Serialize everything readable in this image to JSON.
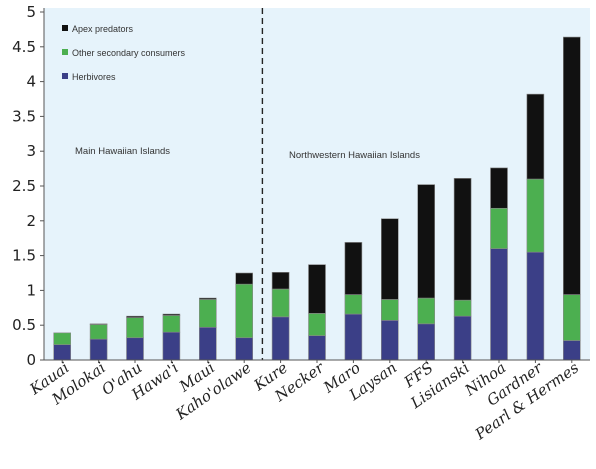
{
  "chart_data": {
    "type": "bar",
    "stacked": true,
    "categories": [
      "Kauai",
      "Molokai",
      "O'ahu",
      "Hawa'i",
      "Maui",
      "Kaho'olawe",
      "Kure",
      "Necker",
      "Maro",
      "Laysan",
      "FFS",
      "Lisianski",
      "Nihoa",
      "Gardner",
      "Pearl & Hermes"
    ],
    "series": [
      {
        "name": "Herbivores",
        "color": "#3b3f87",
        "values": [
          0.22,
          0.3,
          0.32,
          0.4,
          0.47,
          0.32,
          0.62,
          0.35,
          0.66,
          0.57,
          0.52,
          0.63,
          1.6,
          1.55,
          0.28
        ]
      },
      {
        "name": "Other secondary consumers",
        "color": "#4caf50",
        "values": [
          0.17,
          0.21,
          0.29,
          0.24,
          0.4,
          0.77,
          0.4,
          0.32,
          0.28,
          0.3,
          0.37,
          0.23,
          0.58,
          1.05,
          0.66
        ]
      },
      {
        "name": "Apex predators",
        "color": "#111111",
        "values": [
          0.0,
          0.01,
          0.02,
          0.02,
          0.02,
          0.16,
          0.24,
          0.7,
          0.75,
          1.16,
          1.63,
          1.75,
          0.58,
          1.22,
          3.7
        ]
      }
    ],
    "ylim": [
      0,
      5
    ],
    "yticks": [
      "0",
      "0.5",
      "1",
      "1.5",
      "2",
      "2.5",
      "3",
      "3.5",
      "4",
      "4.5",
      "5"
    ],
    "regions": [
      {
        "label": "Main Hawaiian Islands",
        "count": 6
      },
      {
        "label": "Northwestern Hawaiian Islands",
        "count": 9
      }
    ],
    "legend_order": [
      2,
      1,
      0
    ],
    "legend_position": "top-left",
    "grid": false,
    "colors": {
      "background": "#e6f3fb",
      "axis": "#555555",
      "divider": "#222222"
    }
  }
}
